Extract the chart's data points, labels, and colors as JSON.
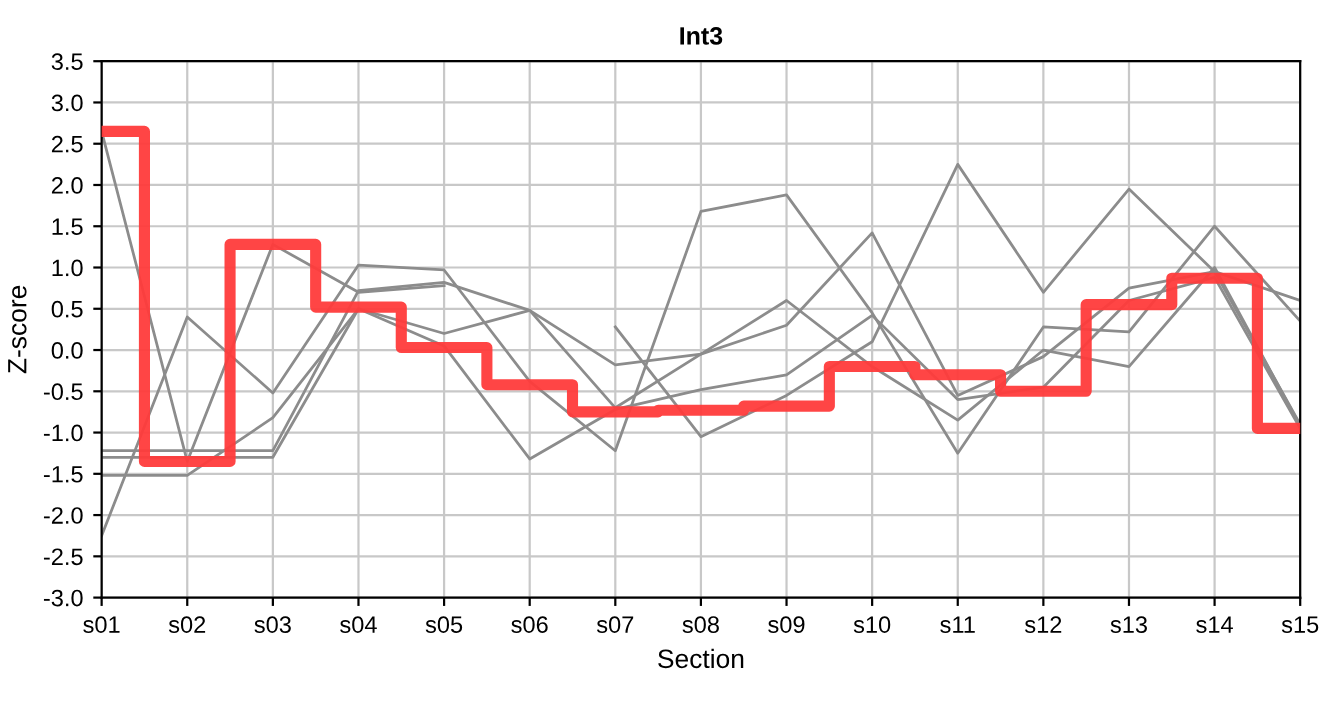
{
  "chart_data": {
    "type": "line",
    "title": "Int3",
    "xlabel": "Section",
    "ylabel": "Z-score",
    "categories": [
      "s01",
      "s02",
      "s03",
      "s04",
      "s05",
      "s06",
      "s07",
      "s08",
      "s09",
      "s10",
      "s11",
      "s12",
      "s13",
      "s14",
      "s15"
    ],
    "series": [
      {
        "color": "#8c8c8c",
        "values": [
          2.65,
          -1.35,
          1.28,
          0.7,
          0.78,
          null,
          0.28,
          -1.05,
          -0.55,
          0.1,
          2.25,
          0.7,
          1.95,
          0.95,
          0.6
        ]
      },
      {
        "color": "#8c8c8c",
        "values": [
          -2.25,
          0.4,
          -0.52,
          1.03,
          0.97,
          -0.38,
          -1.22,
          1.68,
          1.88,
          0.45,
          -1.25,
          0.28,
          0.22,
          1.5,
          0.35
        ]
      },
      {
        "color": "#8c8c8c",
        "values": [
          -1.22,
          -1.22,
          -1.22,
          0.72,
          0.82,
          0.48,
          -0.18,
          -0.05,
          0.3,
          1.42,
          -0.55,
          -0.08,
          0.75,
          0.95,
          -0.9
        ]
      },
      {
        "color": "#8c8c8c",
        "values": [
          -1.3,
          -1.3,
          -1.3,
          0.5,
          0.2,
          0.48,
          -0.7,
          -0.05,
          0.6,
          -0.2,
          -0.85,
          0.0,
          -0.2,
          1.0,
          -0.92
        ]
      },
      {
        "color": "#8c8c8c",
        "values": [
          -1.52,
          -1.52,
          -0.82,
          0.5,
          0.05,
          -1.32,
          -0.72,
          -0.48,
          -0.3,
          0.42,
          -0.6,
          -0.45,
          0.6,
          0.88,
          -0.95
        ]
      },
      {
        "type": "step",
        "color": "#ff3b3b",
        "values": [
          2.65,
          -1.35,
          1.28,
          0.52,
          0.03,
          -0.42,
          -0.75,
          -0.73,
          -0.68,
          -0.2,
          -0.3,
          -0.5,
          0.55,
          0.87,
          -0.95
        ]
      }
    ],
    "ylim": [
      -3.0,
      3.5
    ],
    "yticks": [
      {
        "value": 3.5,
        "label": "3.5"
      },
      {
        "value": 3,
        "label": "3.0"
      },
      {
        "value": 2.5,
        "label": "2.5"
      },
      {
        "value": 2,
        "label": "2.0"
      },
      {
        "value": 1.5,
        "label": "1.5"
      },
      {
        "value": 1,
        "label": "1.0"
      },
      {
        "value": 0.5,
        "label": "0.5"
      },
      {
        "value": 0,
        "label": "0.0"
      },
      {
        "value": -0.5,
        "label": "-0.5"
      },
      {
        "value": -1,
        "label": "-1.0"
      },
      {
        "value": -1.5,
        "label": "-1.5"
      },
      {
        "value": -2,
        "label": "-2.0"
      },
      {
        "value": -2.5,
        "label": "-2.5"
      },
      {
        "value": -3,
        "label": "-3.0"
      }
    ],
    "grid": true
  }
}
